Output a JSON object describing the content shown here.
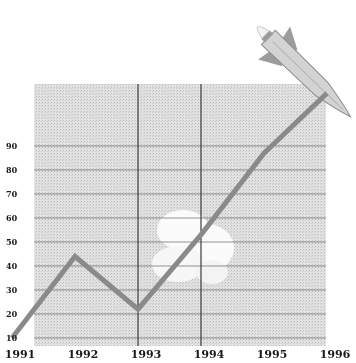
{
  "chart_data": {
    "type": "line",
    "title": "",
    "xlabel": "",
    "ylabel": "",
    "x": [
      1991,
      1992,
      1993,
      1994,
      1995,
      1996
    ],
    "x_tick_labels": [
      "1991",
      "1992",
      "1993",
      "1994",
      "1995",
      "1996"
    ],
    "y_tick_labels": [
      "10",
      "20",
      "30",
      "40",
      "50",
      "60",
      "70",
      "80",
      "90"
    ],
    "ylim": [
      10,
      100
    ],
    "xlim": [
      1991,
      1996
    ],
    "grid": true,
    "series": [
      {
        "points": [
          {
            "x": 1991,
            "y": 10
          },
          {
            "x": 1992,
            "y": 44
          },
          {
            "x": 1993,
            "y": 22
          },
          {
            "x": 1994,
            "y": 53
          },
          {
            "x": 1995,
            "y": 87
          },
          {
            "x": 1996,
            "y": 112
          }
        ]
      }
    ],
    "annotations": [
      "rocket-illustration",
      "cloud-illustration"
    ],
    "colors": {
      "line": "#8a8a8a",
      "grid": "#6e6e6e",
      "plot_background": "#e4e4e4",
      "rocket": "#d0d0d0"
    }
  }
}
